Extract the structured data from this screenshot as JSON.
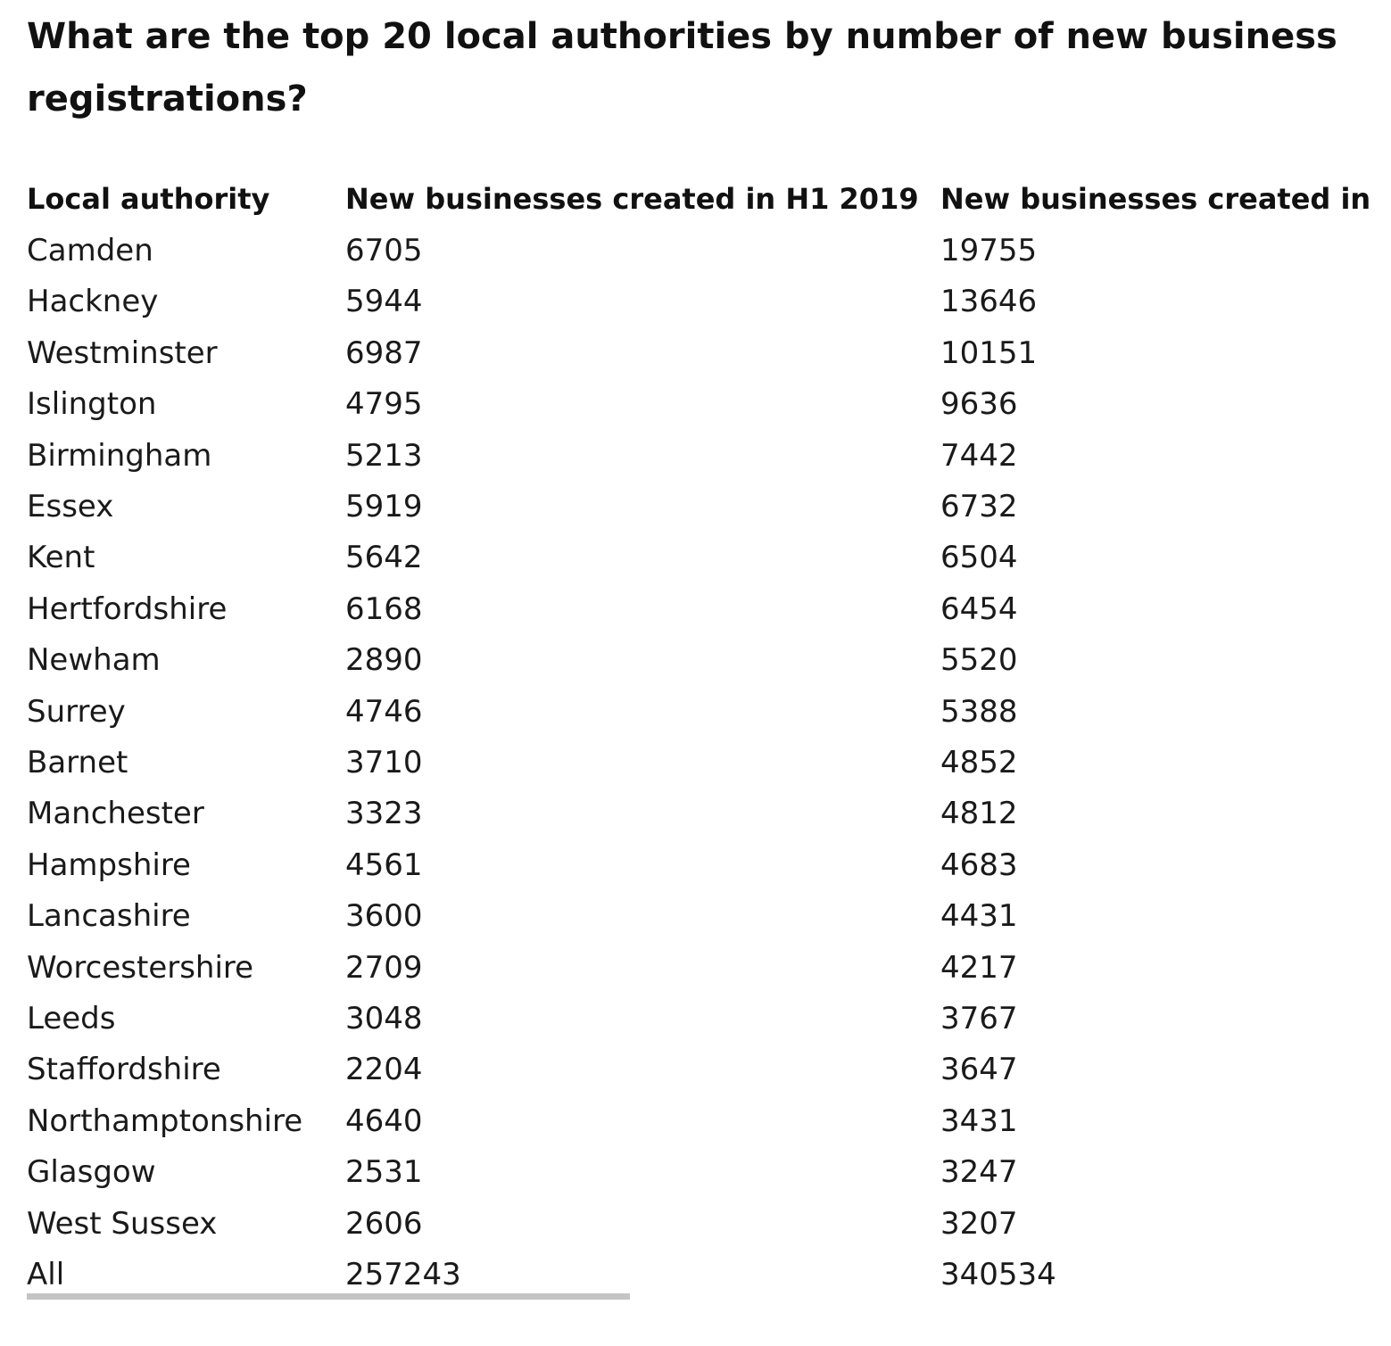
{
  "title": "What are the top 20 local authorities by number of new business registrations?",
  "chart_data": {
    "type": "table",
    "title": "What are the top 20 local authorities by number of new business registrations?",
    "columns": [
      "Local authority",
      "New businesses created in H1 2019",
      "New businesses created in"
    ],
    "rows": [
      [
        "Camden",
        "6705",
        "19755"
      ],
      [
        "Hackney",
        "5944",
        "13646"
      ],
      [
        "Westminster",
        "6987",
        "10151"
      ],
      [
        "Islington",
        "4795",
        "9636"
      ],
      [
        "Birmingham",
        "5213",
        "7442"
      ],
      [
        "Essex",
        "5919",
        "6732"
      ],
      [
        "Kent",
        "5642",
        "6504"
      ],
      [
        "Hertfordshire",
        "6168",
        "6454"
      ],
      [
        "Newham",
        "2890",
        "5520"
      ],
      [
        "Surrey",
        "4746",
        "5388"
      ],
      [
        "Barnet",
        "3710",
        "4852"
      ],
      [
        "Manchester",
        "3323",
        "4812"
      ],
      [
        "Hampshire",
        "4561",
        "4683"
      ],
      [
        "Lancashire",
        "3600",
        "4431"
      ],
      [
        "Worcestershire",
        "2709",
        "4217"
      ],
      [
        "Leeds",
        "3048",
        "3767"
      ],
      [
        "Staffordshire",
        "2204",
        "3647"
      ],
      [
        "Northamptonshire",
        "4640",
        "3431"
      ],
      [
        "Glasgow",
        "2531",
        "3247"
      ],
      [
        "West Sussex",
        "2606",
        "3207"
      ],
      [
        "All",
        "257243",
        "340534"
      ]
    ]
  }
}
